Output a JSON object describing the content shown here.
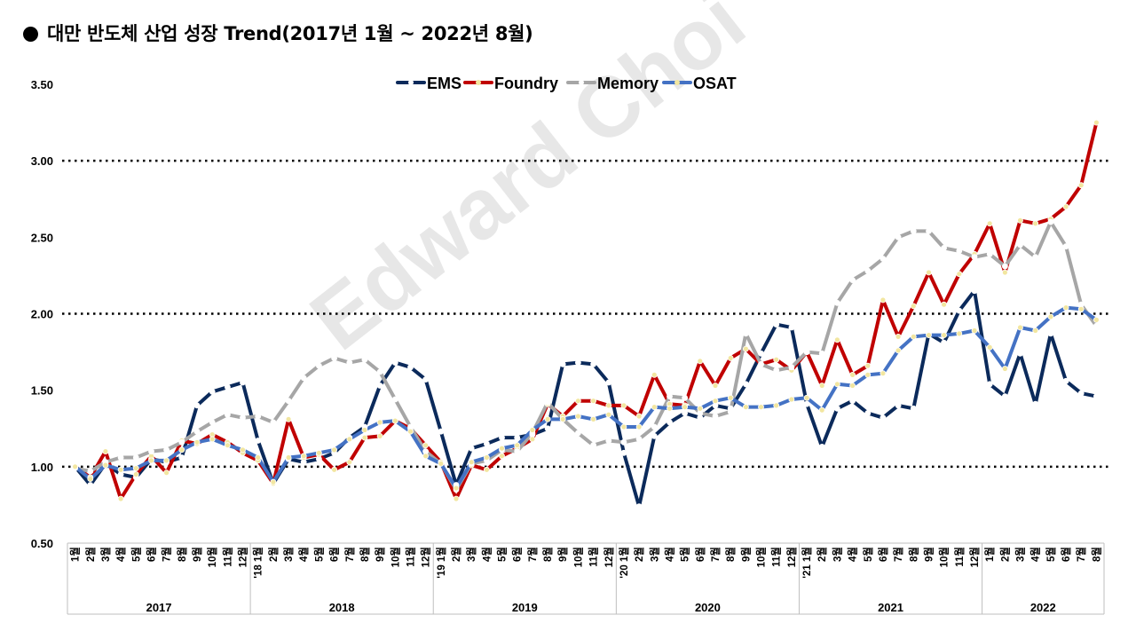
{
  "title": "대만 반도체 산업 성장 Trend(2017년 1월 ~ 2022년 8월)",
  "watermark": "Edward Choi",
  "chart_data": {
    "type": "line",
    "title": "대만 반도체 산업 성장 Trend(2017년 1월 ~ 2022년 8월)",
    "ylim": [
      0.5,
      3.5
    ],
    "yticks": [
      "3.50",
      "3.00",
      "2.50",
      "2.00",
      "1.50",
      "1.00",
      "0.50"
    ],
    "reference_lines": [
      1.0,
      2.0,
      3.0
    ],
    "legend_position": "top-center",
    "month_unit": "월",
    "x_months": [
      "1",
      "2",
      "3",
      "4",
      "5",
      "6",
      "7",
      "8",
      "9",
      "10",
      "11",
      "12",
      "1",
      "2",
      "3",
      "4",
      "5",
      "6",
      "7",
      "8",
      "9",
      "10",
      "11",
      "12",
      "1",
      "2",
      "3",
      "4",
      "5",
      "6",
      "7",
      "8",
      "9",
      "10",
      "11",
      "12",
      "1",
      "2",
      "3",
      "4",
      "5",
      "6",
      "7",
      "8",
      "9",
      "10",
      "11",
      "12",
      "1",
      "2",
      "3",
      "4",
      "5",
      "6",
      "7",
      "8",
      "9",
      "10",
      "11",
      "12",
      "1",
      "2",
      "3",
      "4",
      "5",
      "6",
      "7",
      "8"
    ],
    "year_prefixes": [
      {
        "index": 12,
        "text": "'18"
      },
      {
        "index": 24,
        "text": "'19"
      },
      {
        "index": 36,
        "text": "'20"
      },
      {
        "index": 48,
        "text": "'21"
      }
    ],
    "years": [
      {
        "label": "2017",
        "count": 12
      },
      {
        "label": "2018",
        "count": 12
      },
      {
        "label": "2019",
        "count": 12
      },
      {
        "label": "2020",
        "count": 12
      },
      {
        "label": "2021",
        "count": 12
      },
      {
        "label": "2022",
        "count": 8
      }
    ],
    "series": [
      {
        "name": "EMS",
        "color": "#0b2a5b",
        "marker": "#ffffff",
        "values": [
          1.0,
          0.88,
          1.02,
          0.95,
          0.93,
          1.05,
          1.03,
          1.06,
          1.4,
          1.49,
          1.52,
          1.55,
          1.17,
          0.89,
          1.05,
          1.03,
          1.05,
          1.09,
          1.19,
          1.26,
          1.53,
          1.68,
          1.65,
          1.57,
          1.23,
          0.88,
          1.12,
          1.15,
          1.19,
          1.19,
          1.21,
          1.25,
          1.67,
          1.68,
          1.67,
          1.55,
          1.09,
          0.74,
          1.2,
          1.29,
          1.35,
          1.32,
          1.4,
          1.38,
          1.54,
          1.74,
          1.93,
          1.91,
          1.41,
          1.13,
          1.38,
          1.43,
          1.35,
          1.32,
          1.4,
          1.38,
          1.87,
          1.81,
          2.02,
          2.15,
          1.54,
          1.46,
          1.74,
          1.41,
          1.87,
          1.56,
          1.48,
          1.46
        ]
      },
      {
        "name": "Foundry",
        "color": "#c00000",
        "marker": "#f2e6a0",
        "values": [
          1.0,
          0.93,
          1.1,
          0.79,
          0.95,
          1.07,
          0.96,
          1.17,
          1.15,
          1.21,
          1.16,
          1.09,
          1.04,
          0.89,
          1.31,
          1.06,
          1.08,
          0.98,
          1.03,
          1.19,
          1.2,
          1.3,
          1.25,
          1.14,
          1.03,
          0.79,
          1.01,
          0.98,
          1.07,
          1.12,
          1.18,
          1.41,
          1.33,
          1.43,
          1.43,
          1.4,
          1.4,
          1.33,
          1.6,
          1.41,
          1.4,
          1.69,
          1.53,
          1.71,
          1.77,
          1.67,
          1.7,
          1.63,
          1.75,
          1.53,
          1.83,
          1.6,
          1.66,
          2.09,
          1.85,
          2.05,
          2.27,
          2.06,
          2.26,
          2.39,
          2.59,
          2.27,
          2.61,
          2.59,
          2.62,
          2.7,
          2.84,
          3.25
        ]
      },
      {
        "name": "Memory",
        "color": "#a6a6a6",
        "marker": "#ffffff",
        "values": [
          0.99,
          0.97,
          1.03,
          1.06,
          1.06,
          1.1,
          1.11,
          1.16,
          1.23,
          1.29,
          1.34,
          1.32,
          1.33,
          1.29,
          1.43,
          1.58,
          1.66,
          1.71,
          1.68,
          1.7,
          1.62,
          1.44,
          1.26,
          1.1,
          1.02,
          0.85,
          1.02,
          1.04,
          1.11,
          1.1,
          1.22,
          1.42,
          1.31,
          1.22,
          1.14,
          1.17,
          1.16,
          1.18,
          1.26,
          1.46,
          1.45,
          1.35,
          1.33,
          1.36,
          1.87,
          1.67,
          1.63,
          1.65,
          1.75,
          1.74,
          2.07,
          2.22,
          2.28,
          2.36,
          2.5,
          2.54,
          2.54,
          2.43,
          2.41,
          2.37,
          2.39,
          2.31,
          2.45,
          2.37,
          2.6,
          2.44,
          2.06,
          1.92
        ]
      },
      {
        "name": "OSAT",
        "color": "#4472c4",
        "marker": "#f2e6a0",
        "values": [
          1.0,
          0.92,
          1.01,
          0.98,
          0.99,
          1.04,
          1.04,
          1.11,
          1.16,
          1.18,
          1.14,
          1.11,
          1.06,
          0.9,
          1.06,
          1.07,
          1.09,
          1.11,
          1.18,
          1.24,
          1.29,
          1.3,
          1.23,
          1.07,
          1.02,
          0.86,
          1.03,
          1.06,
          1.12,
          1.14,
          1.24,
          1.31,
          1.31,
          1.33,
          1.31,
          1.34,
          1.26,
          1.26,
          1.39,
          1.38,
          1.39,
          1.38,
          1.43,
          1.45,
          1.39,
          1.39,
          1.4,
          1.44,
          1.45,
          1.37,
          1.54,
          1.53,
          1.6,
          1.61,
          1.76,
          1.85,
          1.86,
          1.86,
          1.87,
          1.89,
          1.78,
          1.64,
          1.91,
          1.89,
          1.98,
          2.04,
          2.03,
          1.96
        ]
      }
    ]
  }
}
